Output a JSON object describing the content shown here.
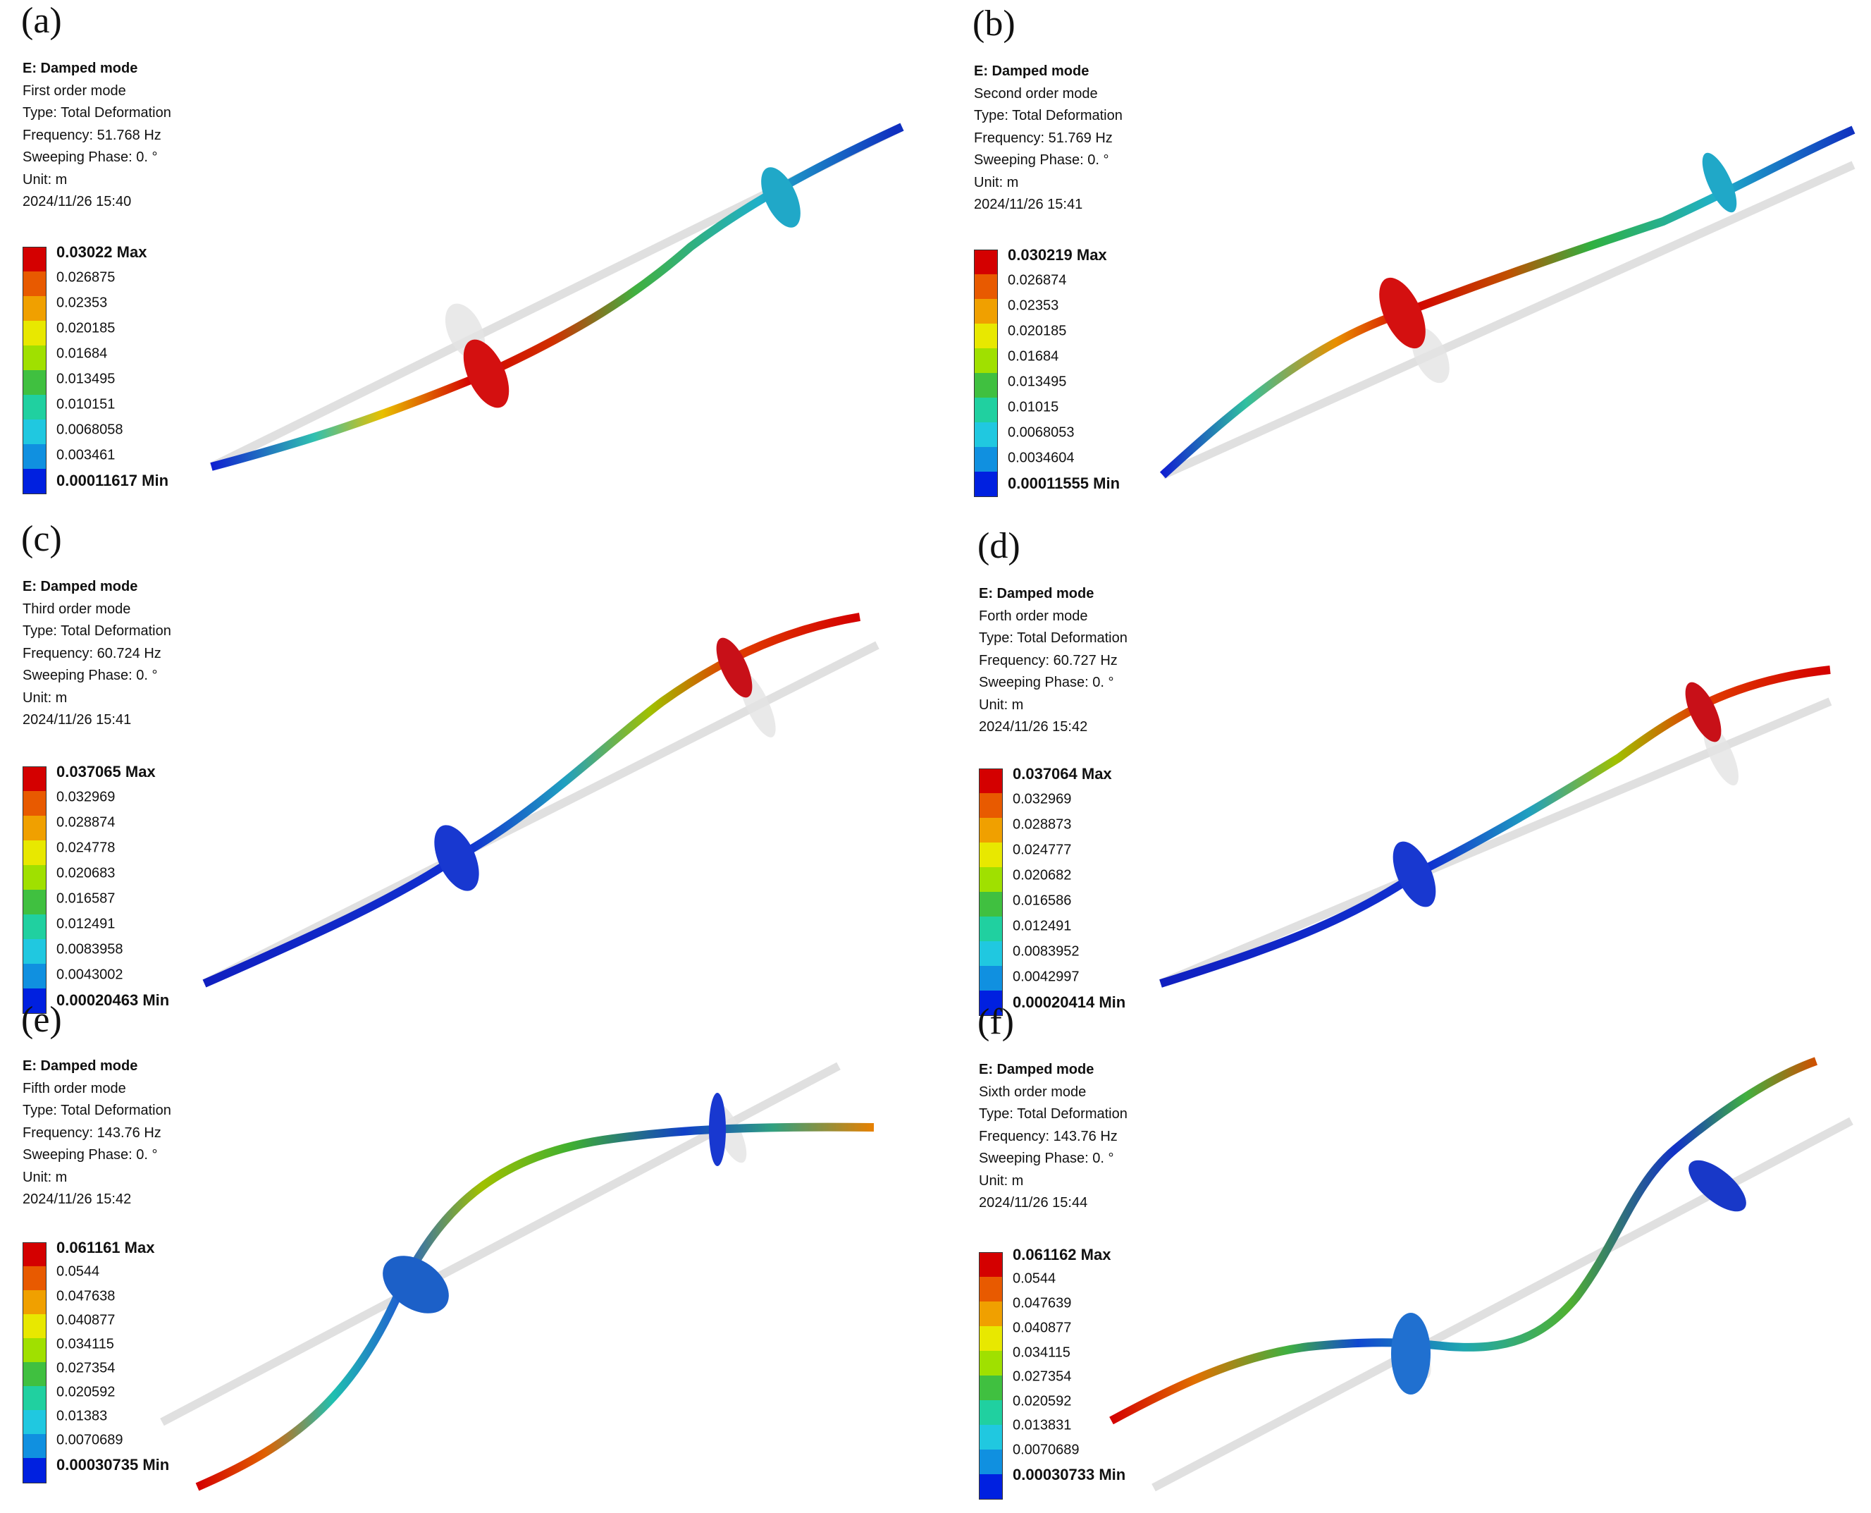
{
  "colors": [
    "#d40000",
    "#e85a00",
    "#f0a000",
    "#e8e800",
    "#a0e000",
    "#40c040",
    "#20d0a0",
    "#20c8e0",
    "#1090e0",
    "#0020e0"
  ],
  "panels": [
    {
      "label": "(a)",
      "title": "E: Damped mode",
      "mode": "First order mode",
      "type": "Type: Total Deformation",
      "frequency": "Frequency: 51.768 Hz",
      "phase": "Sweeping Phase: 0. °",
      "unit": "Unit: m",
      "timestamp": "2024/11/26 15:40",
      "legend": [
        "0.03022 Max",
        "0.026875",
        "0.02353",
        "0.020185",
        "0.01684",
        "0.013495",
        "0.010151",
        "0.0068058",
        "0.003461",
        "0.00011617 Min"
      ]
    },
    {
      "label": "(b)",
      "title": "E: Damped mode",
      "mode": "Second order mode",
      "type": "Type: Total Deformation",
      "frequency": "Frequency: 51.769 Hz",
      "phase": "Sweeping Phase: 0. °",
      "unit": "Unit: m",
      "timestamp": "2024/11/26 15:41",
      "legend": [
        "0.030219 Max",
        "0.026874",
        "0.02353",
        "0.020185",
        "0.01684",
        "0.013495",
        "0.01015",
        "0.0068053",
        "0.0034604",
        "0.00011555 Min"
      ]
    },
    {
      "label": "(c)",
      "title": "E: Damped mode",
      "mode": "Third order mode",
      "type": "Type: Total Deformation",
      "frequency": "Frequency: 60.724 Hz",
      "phase": "Sweeping Phase: 0. °",
      "unit": "Unit: m",
      "timestamp": "2024/11/26 15:41",
      "legend": [
        "0.037065 Max",
        "0.032969",
        "0.028874",
        "0.024778",
        "0.020683",
        "0.016587",
        "0.012491",
        "0.0083958",
        "0.0043002",
        "0.00020463 Min"
      ]
    },
    {
      "label": "(d)",
      "title": "E: Damped mode",
      "mode": "Forth order mode",
      "type": "Type: Total Deformation",
      "frequency": "Frequency: 60.727 Hz",
      "phase": "Sweeping Phase: 0. °",
      "unit": "Unit: m",
      "timestamp": "2024/11/26 15:42",
      "legend": [
        "0.037064 Max",
        "0.032969",
        "0.028873",
        "0.024777",
        "0.020682",
        "0.016586",
        "0.012491",
        "0.0083952",
        "0.0042997",
        "0.00020414 Min"
      ]
    },
    {
      "label": "(e)",
      "title": "E: Damped mode",
      "mode": "Fifth order mode",
      "type": "Type: Total Deformation",
      "frequency": "Frequency: 143.76 Hz",
      "phase": "Sweeping Phase: 0. °",
      "unit": "Unit: m",
      "timestamp": "2024/11/26 15:42",
      "legend": [
        "0.061161 Max",
        "0.0544",
        "0.047638",
        "0.040877",
        "0.034115",
        "0.027354",
        "0.020592",
        "0.01383",
        "0.0070689",
        "0.00030735 Min"
      ]
    },
    {
      "label": "(f)",
      "title": "E: Damped mode",
      "mode": "Sixth order mode",
      "type": "Type: Total Deformation",
      "frequency": "Frequency: 143.76 Hz",
      "phase": "Sweeping Phase: 0. °",
      "unit": "Unit: m",
      "timestamp": "2024/11/26 15:44",
      "legend": [
        "0.061162 Max",
        "0.0544",
        "0.047639",
        "0.040877",
        "0.034115",
        "0.027354",
        "0.020592",
        "0.013831",
        "0.0070689",
        "0.00030733 Min"
      ]
    }
  ]
}
